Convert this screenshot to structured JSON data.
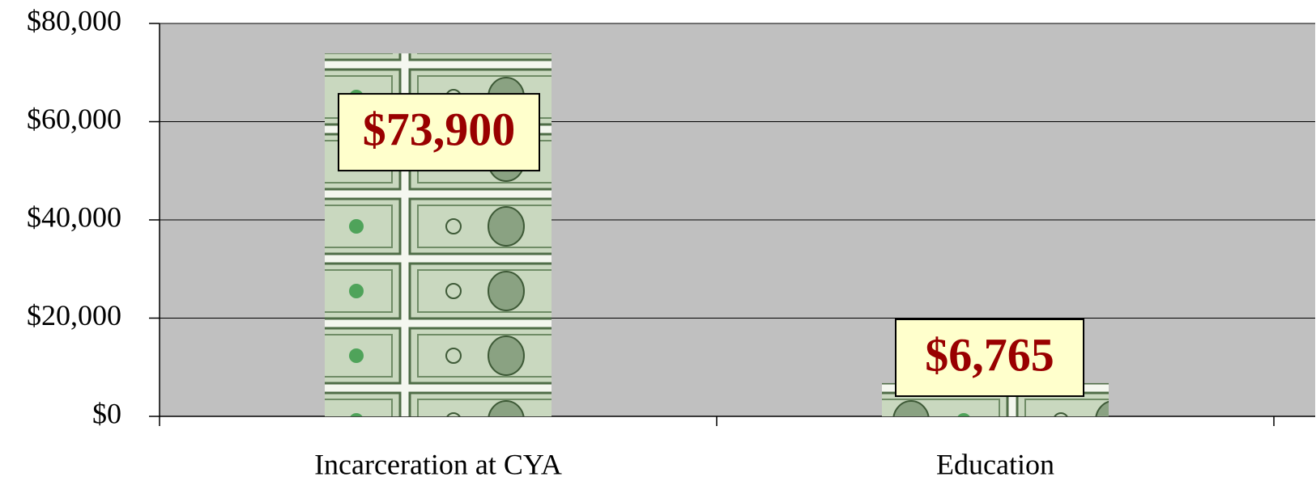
{
  "chart_data": {
    "type": "bar",
    "categories": [
      "Incarceration at CYA",
      "Education"
    ],
    "values": [
      73900,
      6765
    ],
    "value_labels": [
      "$73,900",
      "$6,765"
    ],
    "ylim": [
      0,
      80000
    ],
    "yticks": [
      {
        "value": 0,
        "label": "$0"
      },
      {
        "value": 20000,
        "label": "$20,000"
      },
      {
        "value": 40000,
        "label": "$40,000"
      },
      {
        "value": 60000,
        "label": "$60,000"
      },
      {
        "value": 80000,
        "label": "$80,000"
      }
    ],
    "grid": true
  }
}
